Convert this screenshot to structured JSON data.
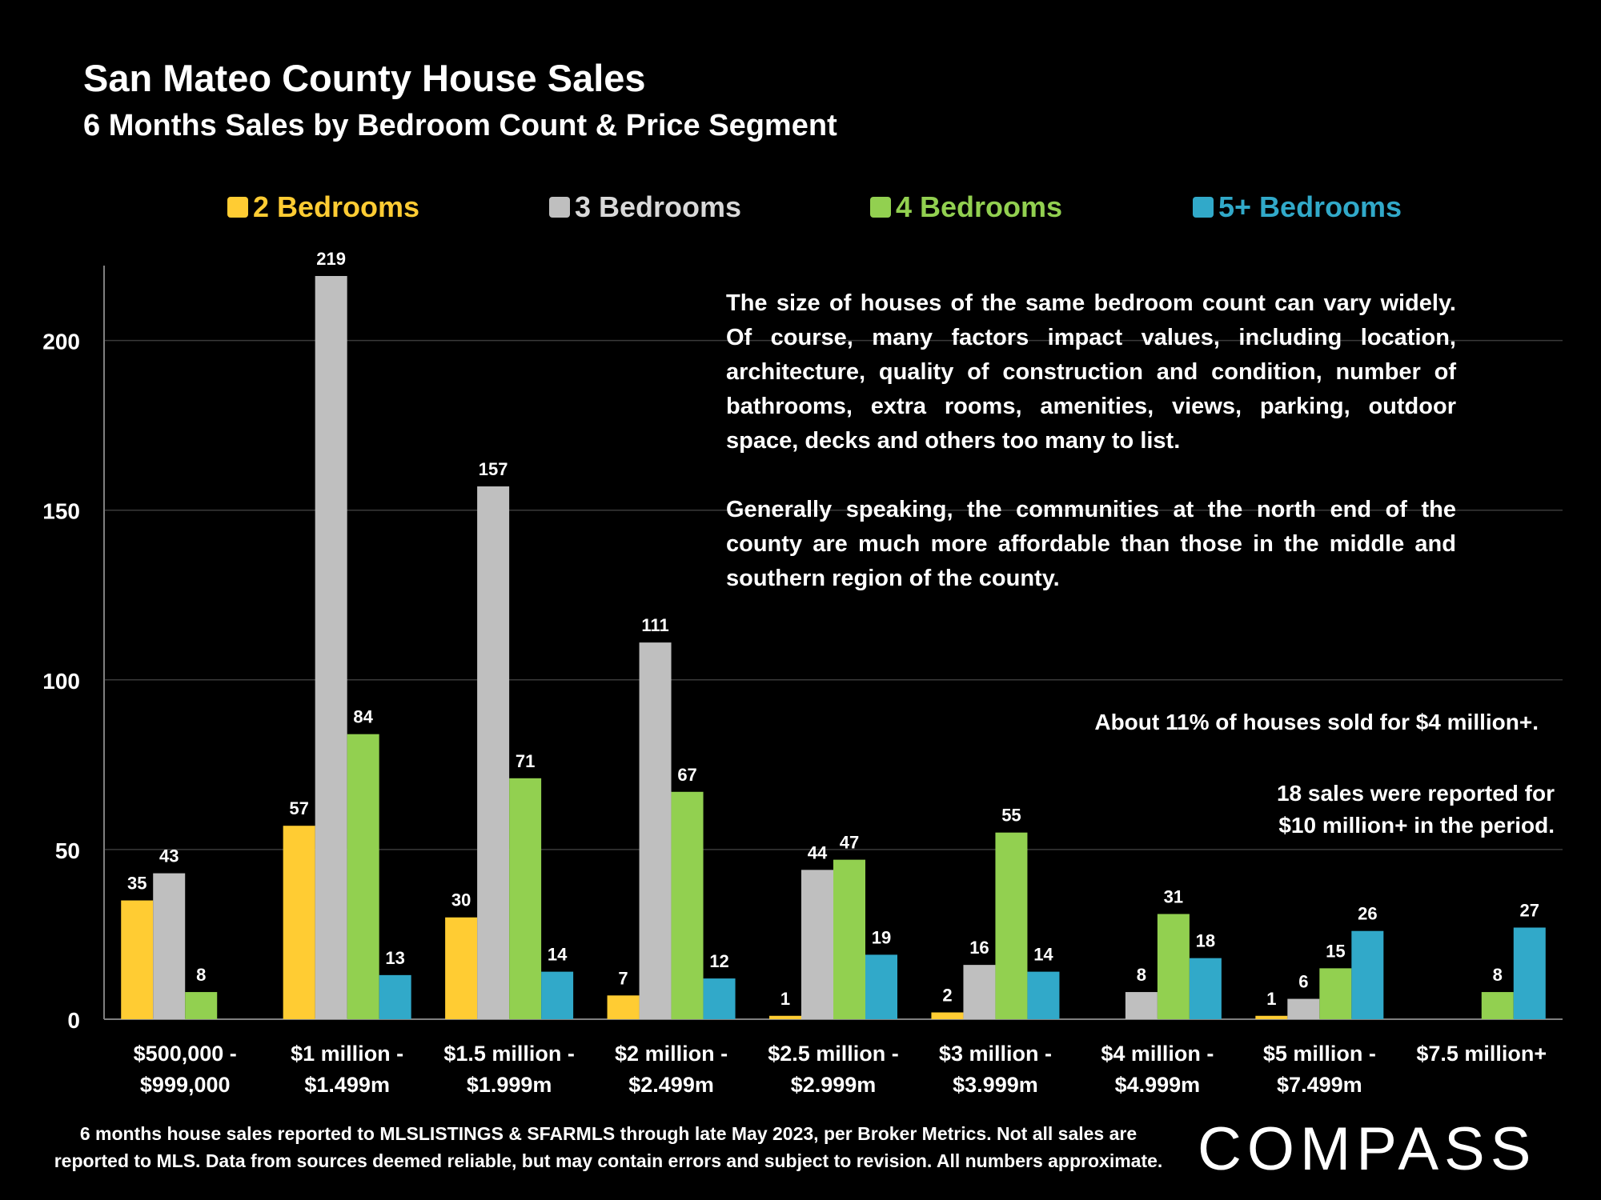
{
  "title": "San Mateo County House Sales",
  "subtitle": "6 Months Sales by Bedroom Count & Price Segment",
  "annotations": {
    "paragraph1": "The size of houses of the same bedroom count can vary widely. Of course, many factors impact values, including location, architecture, quality of construction and condition, number of bathrooms, extra rooms, amenities, views, parking, outdoor space, decks and others too many to list.",
    "paragraph2": "Generally speaking, the communities at the north end of the county are much more affordable than those in the middle and southern region of the county.",
    "note1": "About 11% of houses sold for $4 million+.",
    "note2_line1": "18 sales were reported for",
    "note2_line2": "$10 million+ in the period."
  },
  "footnote": {
    "line1": "6 months house sales reported to MLSLISTINGS & SFARMLS through late May 2023, per Broker Metrics. Not all sales are",
    "line2": "reported to MLS. Data from sources deemed reliable, but may contain errors and subject to revision. All numbers approximate."
  },
  "logo": "COMPASS",
  "chart_data": {
    "type": "bar",
    "categories": [
      [
        "$500,000 -",
        "$999,000"
      ],
      [
        "$1 million -",
        "$1.499m"
      ],
      [
        "$1.5 million -",
        "$1.999m"
      ],
      [
        "$2 million -",
        "$2.499m"
      ],
      [
        "$2.5 million -",
        "$2.999m"
      ],
      [
        "$3 million -",
        "$3.999m"
      ],
      [
        "$4 million -",
        "$4.999m"
      ],
      [
        "$5 million -",
        "$7.499m"
      ],
      [
        "$7.5 million+"
      ]
    ],
    "series": [
      {
        "name": "2 Bedrooms",
        "color": "#FFCC33",
        "values": [
          35,
          57,
          30,
          7,
          1,
          2,
          null,
          1,
          null
        ]
      },
      {
        "name": "3 Bedrooms",
        "color": "#BFBFBF",
        "values": [
          43,
          219,
          157,
          111,
          44,
          16,
          8,
          6,
          null
        ]
      },
      {
        "name": "4 Bedrooms",
        "color": "#92D050",
        "values": [
          8,
          84,
          71,
          67,
          47,
          55,
          31,
          15,
          8
        ]
      },
      {
        "name": "5+ Bedrooms",
        "color": "#31A9C9",
        "values": [
          null,
          13,
          14,
          12,
          19,
          14,
          18,
          26,
          27
        ]
      }
    ],
    "ylim": [
      0,
      219
    ],
    "yticks": [
      0,
      50,
      100,
      150,
      200
    ],
    "grid": true,
    "legend_position": "top",
    "legend_text_colors": [
      "#FFCC33",
      "#D9D9D9",
      "#92D050",
      "#31A9C9"
    ]
  }
}
